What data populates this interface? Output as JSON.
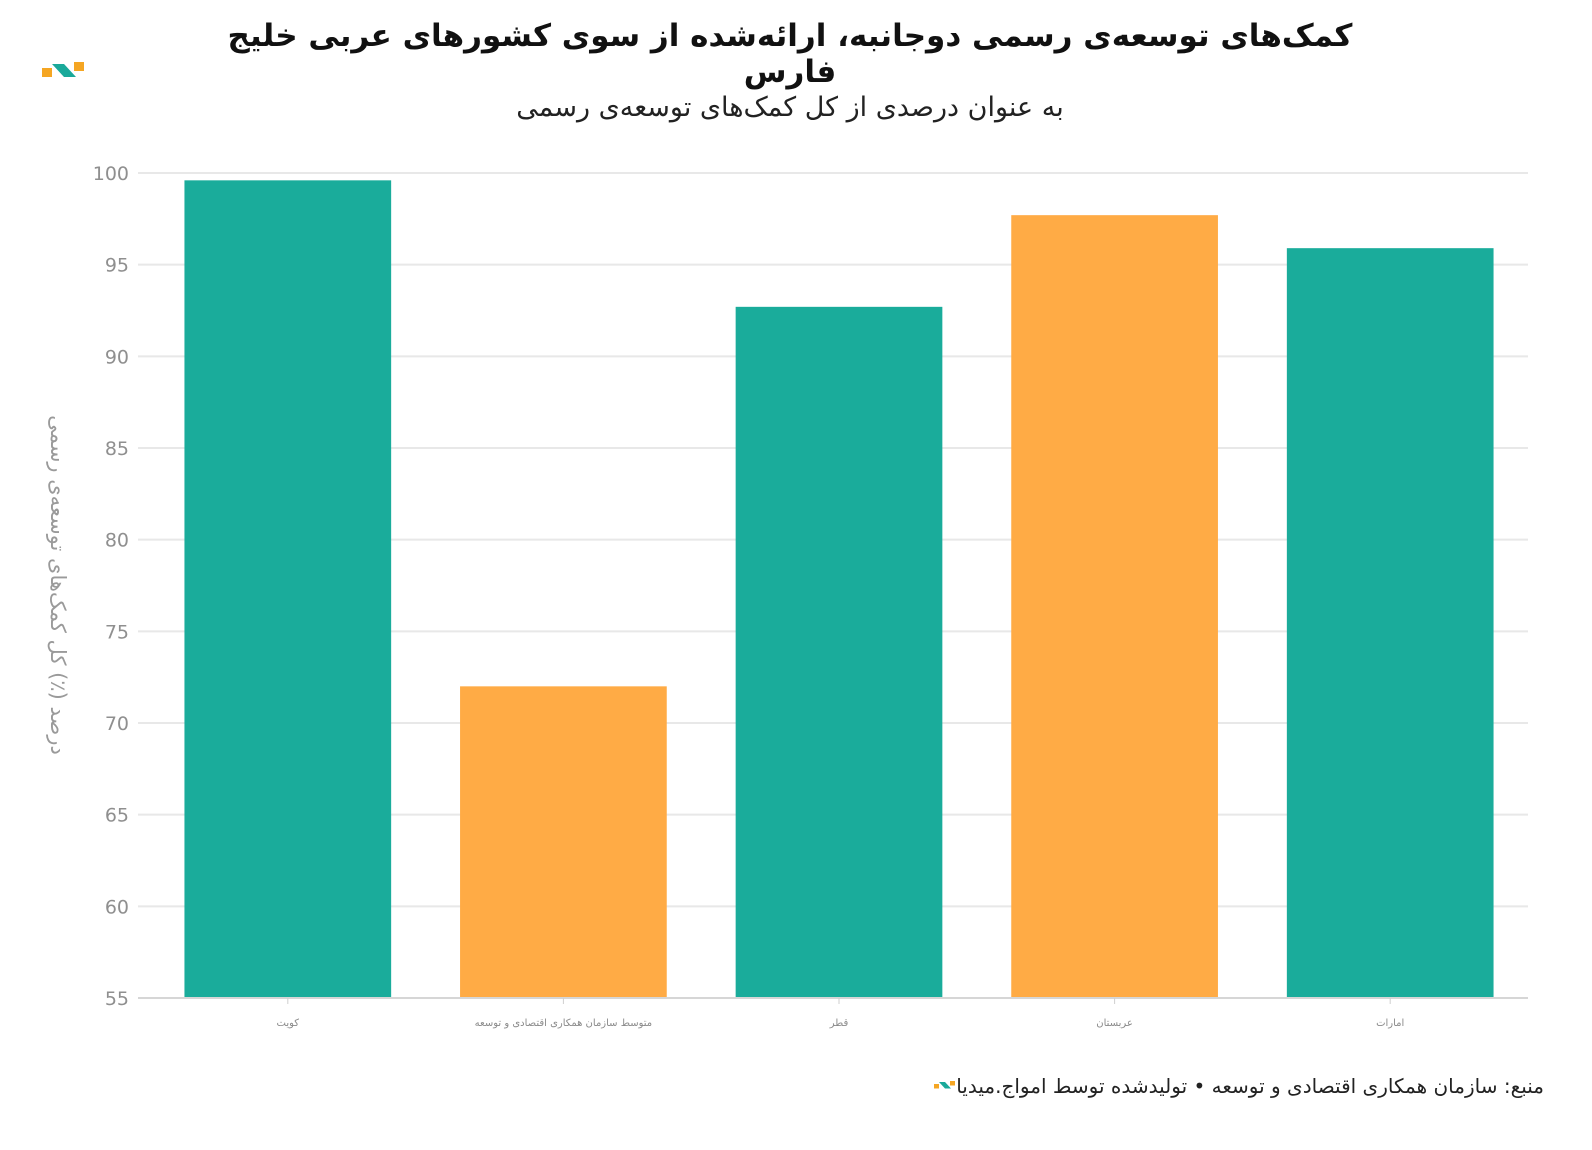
{
  "title": "کمک‌های توسعه‌ی رسمی دوجانبه، ارائه‌شده از سوی کشورهای عربی خلیج فارس",
  "subtitle": "به عنوان درصدی از کل کمک‌های توسعه‌ی رسمی",
  "source": "منبع: سازمان همکاری اقتصادی و توسعه • تولیدشده توسط امواج.میدیا",
  "logo": {
    "icon": "amwaj-logo-icon",
    "colors": [
      "#f5a623",
      "#1aa99a"
    ]
  },
  "chart_data": {
    "type": "bar",
    "categories": [
      "کویت",
      "متوسط سازمان همکاری اقتصادی و توسعه",
      "قطر",
      "عربستان",
      "امارات"
    ],
    "values": [
      99.6,
      72.0,
      92.7,
      97.7,
      95.9
    ],
    "bar_colors": [
      "#1aac9b",
      "#ffab45",
      "#1aac9b",
      "#ffab45",
      "#1aac9b"
    ],
    "ylabel": "درصد (٪) کل کمک‌های توسعه‌ی رسمی",
    "ylim": [
      55,
      100
    ],
    "yticks": [
      55,
      60,
      65,
      70,
      75,
      80,
      85,
      90,
      95,
      100
    ],
    "grid": true
  }
}
